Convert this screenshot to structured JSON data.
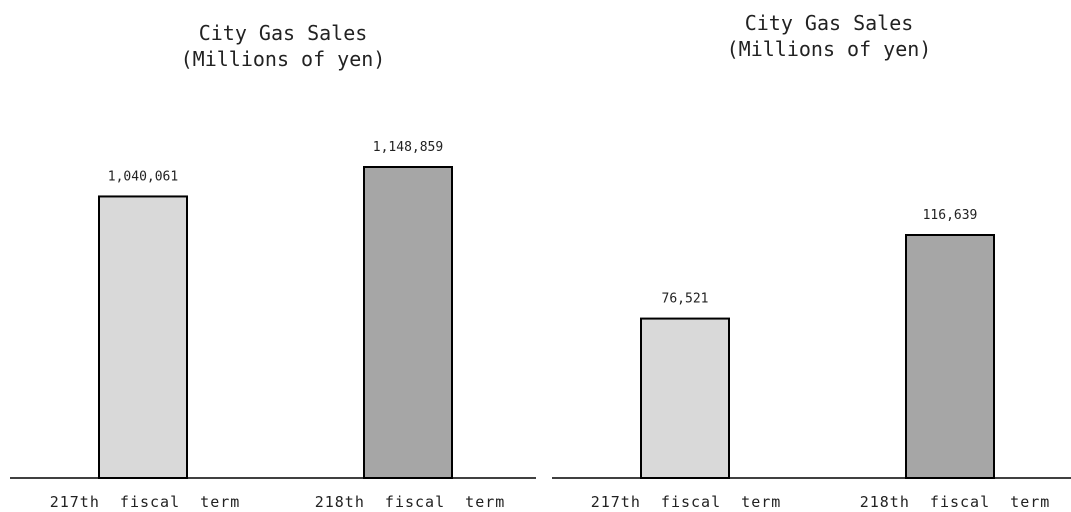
{
  "colors": {
    "first_term": "#d9d9d9",
    "second_term": "#a6a6a6",
    "outline": "#000000"
  },
  "chart_data": [
    {
      "type": "bar",
      "title": "City Gas Sales",
      "subtitle": "(Millions of yen)",
      "categories": [
        "217th  fiscal  term",
        "218th  fiscal  term"
      ],
      "values": [
        1040061,
        1148859
      ],
      "value_labels": [
        "1,040,061",
        "1,148,859"
      ],
      "ylim": [
        0,
        1300000
      ],
      "grid": false
    },
    {
      "type": "bar",
      "title": "City Gas Sales",
      "subtitle": "(Millions of yen)",
      "categories": [
        "217th  fiscal  term",
        "218th  fiscal  term"
      ],
      "values": [
        76521,
        116639
      ],
      "value_labels": [
        "76,521",
        "116,639"
      ],
      "ylim": [
        0,
        194000
      ],
      "grid": false
    }
  ]
}
